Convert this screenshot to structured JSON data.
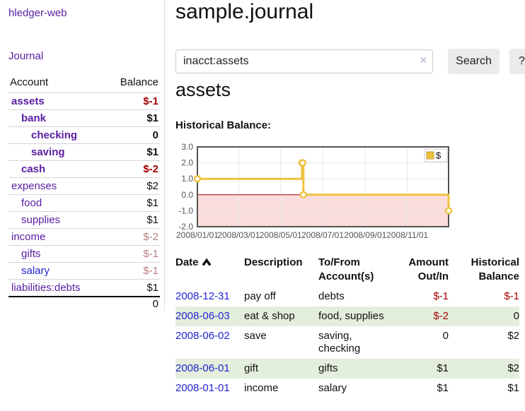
{
  "app": {
    "title": "hledger-web"
  },
  "sidebar": {
    "nav": {
      "journal_label": "Journal"
    },
    "table": {
      "headers": {
        "account": "Account",
        "balance": "Balance"
      },
      "rows": [
        {
          "account": "assets",
          "balance": "$-1",
          "depth": 1,
          "row_class": "bold",
          "balance_class": "neg-strong",
          "link_class": ""
        },
        {
          "account": "bank",
          "balance": "$1",
          "depth": 2,
          "row_class": "bold",
          "balance_class": "",
          "link_class": ""
        },
        {
          "account": "checking",
          "balance": "0",
          "depth": 3,
          "row_class": "bold",
          "balance_class": "",
          "link_class": ""
        },
        {
          "account": "saving",
          "balance": "$1",
          "depth": 3,
          "row_class": "bold",
          "balance_class": "",
          "link_class": ""
        },
        {
          "account": "cash",
          "balance": "$-2",
          "depth": 2,
          "row_class": "bold",
          "balance_class": "neg-strong",
          "link_class": ""
        },
        {
          "account": "expenses",
          "balance": "$2",
          "depth": 1,
          "row_class": "",
          "balance_class": "",
          "link_class": ""
        },
        {
          "account": "food",
          "balance": "$1",
          "depth": 2,
          "row_class": "",
          "balance_class": "",
          "link_class": ""
        },
        {
          "account": "supplies",
          "balance": "$1",
          "depth": 2,
          "row_class": "",
          "balance_class": "",
          "link_class": ""
        },
        {
          "account": "income",
          "balance": "$-2",
          "depth": 1,
          "row_class": "",
          "balance_class": "neg-muted",
          "link_class": ""
        },
        {
          "account": "gifts",
          "balance": "$-1",
          "depth": 2,
          "row_class": "",
          "balance_class": "neg-muted",
          "link_class": ""
        },
        {
          "account": "salary",
          "balance": "$-1",
          "depth": 2,
          "row_class": "",
          "balance_class": "neg-muted",
          "link_class": "blue"
        },
        {
          "account": "liabilities:debts",
          "balance": "$1",
          "depth": 1,
          "row_class": "",
          "balance_class": "",
          "link_class": ""
        }
      ],
      "total": "0"
    }
  },
  "header": {
    "title": "sample.journal"
  },
  "search": {
    "value": "inacct:assets",
    "clear_icon": "×",
    "button_label": "Search",
    "help_label": "?"
  },
  "register": {
    "title": "assets",
    "chart_label": "Historical Balance:"
  },
  "chart_data": {
    "type": "line",
    "steps": true,
    "title": "Historical Balance:",
    "series": [
      {
        "name": "$",
        "color": "#edc240",
        "points": [
          {
            "date": "2008-01-01",
            "day": 0,
            "value": 1
          },
          {
            "date": "2008-06-01",
            "day": 152,
            "value": 2
          },
          {
            "date": "2008-06-02",
            "day": 153,
            "value": 2
          },
          {
            "date": "2008-06-03",
            "day": 154,
            "value": 0
          },
          {
            "date": "2008-12-31",
            "day": 365,
            "value": -1
          }
        ]
      }
    ],
    "x_range_days": [
      0,
      365
    ],
    "ylim": [
      -2,
      3
    ],
    "yticks": [
      {
        "v": 3,
        "label": "3.0"
      },
      {
        "v": 2,
        "label": "2.0"
      },
      {
        "v": 1,
        "label": "1.0"
      },
      {
        "v": 0,
        "label": "0.0"
      },
      {
        "v": -1,
        "label": "-1.0"
      },
      {
        "v": -2,
        "label": "-2.0"
      }
    ],
    "xticks": [
      {
        "day": 0,
        "label": "2008/01/01"
      },
      {
        "day": 60,
        "label": "2008/03/01"
      },
      {
        "day": 121,
        "label": "2008/05/01"
      },
      {
        "day": 182,
        "label": "2008/07/01"
      },
      {
        "day": 244,
        "label": "2008/09/01"
      },
      {
        "day": 305,
        "label": "2008/11/01"
      }
    ],
    "legend": {
      "label": "$",
      "position": "top-right"
    },
    "grid": true,
    "negative_region_fill": "#fbdcdc",
    "zero_line_color": "#a40000",
    "border_color": "#545454",
    "grid_color": "#e6e6e6"
  },
  "transactions": {
    "headers": {
      "date": "Date",
      "description": "Description",
      "account": "To/From Account(s)",
      "amount": "Amount Out/In",
      "balance": "Historical Balance"
    },
    "rows": [
      {
        "date": "2008-12-31",
        "description": "pay off",
        "accounts": "debts",
        "amount": "$-1",
        "amount_class": "neg-strong",
        "balance": "$-1",
        "balance_class": "neg-strong"
      },
      {
        "date": "2008-06-03",
        "description": "eat & shop",
        "accounts": "food, supplies",
        "amount": "$-2",
        "amount_class": "neg-strong",
        "balance": "0",
        "balance_class": ""
      },
      {
        "date": "2008-06-02",
        "description": "save",
        "accounts": "saving, checking",
        "amount": "0",
        "amount_class": "",
        "balance": "$2",
        "balance_class": ""
      },
      {
        "date": "2008-06-01",
        "description": "gift",
        "accounts": "gifts",
        "amount": "$1",
        "amount_class": "",
        "balance": "$2",
        "balance_class": ""
      },
      {
        "date": "2008-01-01",
        "description": "income",
        "accounts": "salary",
        "amount": "$1",
        "amount_class": "",
        "balance": "$1",
        "balance_class": ""
      }
    ]
  }
}
